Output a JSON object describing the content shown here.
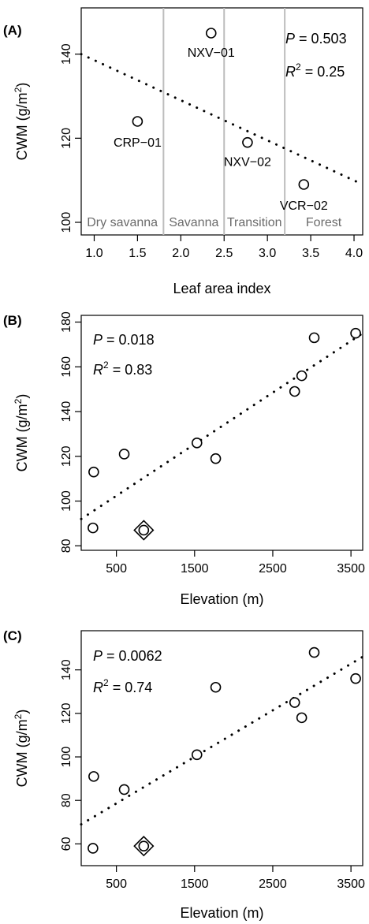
{
  "chart_data": [
    {
      "type": "scatter",
      "panel_label": "(A)",
      "xlabel": "Leaf area index",
      "ylabel": "CWM (g/m²)",
      "xlim": [
        0.85,
        4.1
      ],
      "ylim": [
        97,
        151
      ],
      "xticks": [
        1.0,
        1.5,
        2.0,
        2.5,
        3.0,
        3.5,
        4.0
      ],
      "yticks": [
        100,
        120,
        140
      ],
      "points": [
        {
          "x": 1.5,
          "y": 124,
          "label": "CRP−01"
        },
        {
          "x": 2.35,
          "y": 145,
          "label": "NXV−01"
        },
        {
          "x": 2.77,
          "y": 119,
          "label": "NXV−02"
        },
        {
          "x": 3.42,
          "y": 109,
          "label": "VCR−02"
        }
      ],
      "highlight_points": [],
      "fit_line": {
        "x": [
          0.85,
          4.1
        ],
        "y": [
          140,
          109
        ]
      },
      "zone_dividers": [
        1.8,
        2.5,
        3.2
      ],
      "zones": [
        "Dry savanna",
        "Savanna",
        "Transition",
        "Forest"
      ],
      "stats": {
        "p": "0.503",
        "r2": "0.25"
      }
    },
    {
      "type": "scatter",
      "panel_label": "(B)",
      "xlabel": "Elevation (m)",
      "ylabel": "CWM (g/m²)",
      "xlim": [
        50,
        3650
      ],
      "ylim": [
        78,
        183
      ],
      "xticks": [
        500,
        1500,
        2500,
        3500
      ],
      "yticks": [
        80,
        100,
        120,
        140,
        160,
        180
      ],
      "points": [
        {
          "x": 200,
          "y": 88
        },
        {
          "x": 210,
          "y": 113
        },
        {
          "x": 600,
          "y": 121
        },
        {
          "x": 850,
          "y": 87
        },
        {
          "x": 1530,
          "y": 126
        },
        {
          "x": 1770,
          "y": 119
        },
        {
          "x": 2780,
          "y": 149
        },
        {
          "x": 2870,
          "y": 156
        },
        {
          "x": 3030,
          "y": 173
        },
        {
          "x": 3560,
          "y": 175
        }
      ],
      "highlight_points": [
        {
          "x": 850,
          "y": 87
        }
      ],
      "fit_line": {
        "x": [
          50,
          3650
        ],
        "y": [
          92,
          175
        ]
      },
      "stats": {
        "p": "0.018",
        "r2": "0.83"
      }
    },
    {
      "type": "scatter",
      "panel_label": "(C)",
      "xlabel": "Elevation (m)",
      "ylabel": "CWM (g/m²)",
      "xlim": [
        50,
        3650
      ],
      "ylim": [
        50,
        158
      ],
      "xticks": [
        500,
        1500,
        2500,
        3500
      ],
      "yticks": [
        60,
        80,
        100,
        120,
        140
      ],
      "points": [
        {
          "x": 200,
          "y": 58
        },
        {
          "x": 210,
          "y": 91
        },
        {
          "x": 600,
          "y": 85
        },
        {
          "x": 850,
          "y": 59
        },
        {
          "x": 1530,
          "y": 101
        },
        {
          "x": 1770,
          "y": 132
        },
        {
          "x": 2780,
          "y": 125
        },
        {
          "x": 2870,
          "y": 118
        },
        {
          "x": 3030,
          "y": 148
        },
        {
          "x": 3560,
          "y": 136
        }
      ],
      "highlight_points": [
        {
          "x": 850,
          "y": 59
        }
      ],
      "fit_line": {
        "x": [
          50,
          3650
        ],
        "y": [
          69,
          146
        ]
      },
      "stats": {
        "p": "0.0062",
        "r2": "0.74"
      }
    }
  ]
}
